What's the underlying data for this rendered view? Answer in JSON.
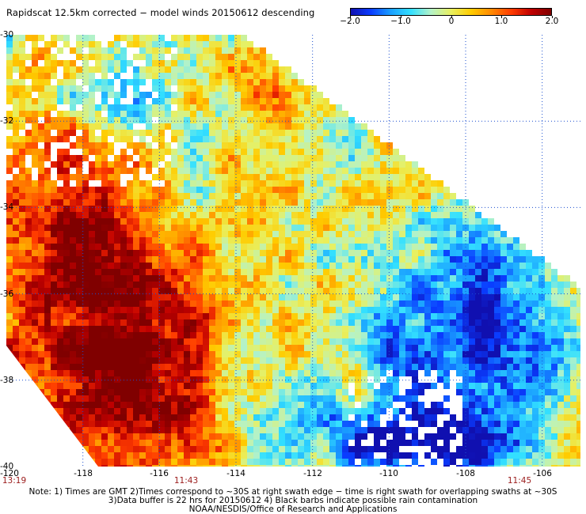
{
  "title": "Rapidscat 12.5km corrected − model winds 20150612 descending",
  "colorbar": {
    "min": -2.0,
    "max": 2.0,
    "labels": [
      "−2.0",
      "−1.0",
      "0",
      "1.0",
      "2.0"
    ],
    "label_values": [
      -2.0,
      -1.0,
      0,
      1.0,
      2.0
    ],
    "colors": [
      "#1010b0",
      "#0a3cff",
      "#1aa0ff",
      "#33e0ff",
      "#b4f2c8",
      "#e8f060",
      "#ffcc00",
      "#ff8a00",
      "#ff3c00",
      "#c00000",
      "#800000"
    ]
  },
  "map": {
    "lat_range": [
      -40,
      -30
    ],
    "lon_range": [
      -120,
      -105
    ],
    "lat_labels": [
      {
        "value": -30,
        "text": "-30"
      },
      {
        "value": -32,
        "text": "-32"
      },
      {
        "value": -34,
        "text": "-34"
      },
      {
        "value": -36,
        "text": "-36"
      },
      {
        "value": -38,
        "text": "-38"
      },
      {
        "value": -40,
        "text": "-40"
      }
    ],
    "lon_labels": [
      {
        "value": -120,
        "text": "-120"
      },
      {
        "value": -118,
        "text": "-118"
      },
      {
        "value": -116,
        "text": "-116"
      },
      {
        "value": -114,
        "text": "-114"
      },
      {
        "value": -112,
        "text": "-112"
      },
      {
        "value": -110,
        "text": "-110"
      },
      {
        "value": -108,
        "text": "-108"
      },
      {
        "value": -106,
        "text": "-106"
      }
    ],
    "time_labels": [
      {
        "value": -120,
        "text": "13:19"
      },
      {
        "value": -115.3,
        "text": "11:43"
      },
      {
        "value": -106.6,
        "text": "11:45"
      }
    ],
    "gridline_color": "#1b4fcf",
    "missing_color": "#ffffff"
  },
  "notes": {
    "line1": "Note: 1) Times are GMT 2)Times correspond to ~30S at right swath edge − time is right swath for overlapping swaths at ~30S",
    "line2": "3)Data buffer is 22 hrs for 20150612 4) Black barbs indicate possible rain contamination",
    "line3": "NOAA/NESDIS/Office of Research and Applications"
  }
}
